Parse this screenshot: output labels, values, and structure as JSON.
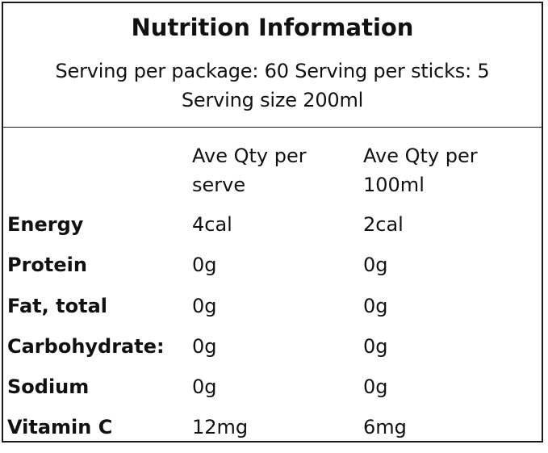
{
  "title": "Nutrition Information",
  "serving": {
    "line1": "Serving per package: 60 Serving per sticks: 5",
    "line2": "Serving size 200ml"
  },
  "columns": {
    "per_serve": "Ave Qty per serve",
    "per_100ml": "Ave Qty per 100ml"
  },
  "rows": [
    {
      "name": "Energy",
      "per_serve": "4cal",
      "per_100ml": "2cal"
    },
    {
      "name": "Protein",
      "per_serve": "0g",
      "per_100ml": "0g"
    },
    {
      "name": "Fat, total",
      "per_serve": "0g",
      "per_100ml": "0g"
    },
    {
      "name": "Carbohydrate:",
      "per_serve": "0g",
      "per_100ml": "0g"
    },
    {
      "name": "Sodium",
      "per_serve": "0g",
      "per_100ml": "0g"
    },
    {
      "name": "Vitamin C",
      "per_serve": "12mg",
      "per_100ml": "6mg"
    }
  ]
}
